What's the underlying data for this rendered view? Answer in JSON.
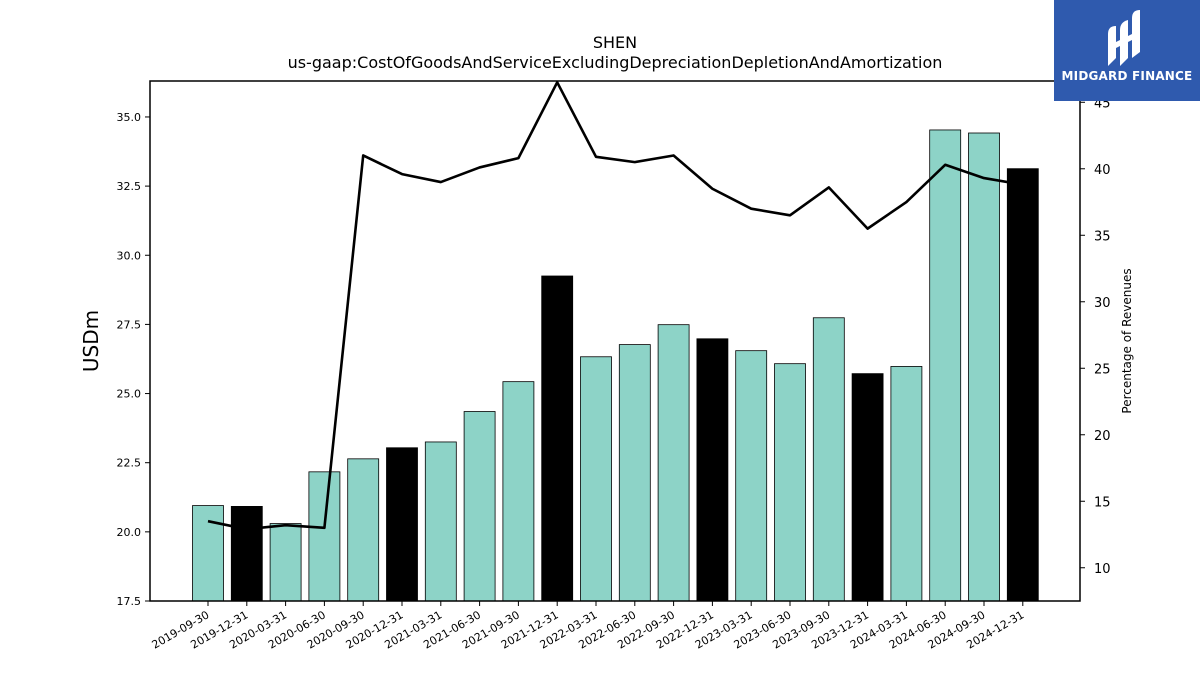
{
  "chart_data": {
    "type": "bar",
    "title": "SHEN",
    "subtitle": "us-gaap:CostOfGoodsAndServiceExcludingDepreciationDepletionAndAmortization",
    "ylabel": "USDm",
    "y2label": "Percentage of Revenues",
    "categories": [
      "2019-09-30",
      "2019-12-31",
      "2020-03-31",
      "2020-06-30",
      "2020-09-30",
      "2020-12-31",
      "2021-03-31",
      "2021-06-30",
      "2021-09-30",
      "2021-12-31",
      "2022-03-31",
      "2022-06-30",
      "2022-09-30",
      "2022-12-31",
      "2023-03-31",
      "2023-06-30",
      "2023-09-30",
      "2023-12-31",
      "2024-03-31",
      "2024-06-30",
      "2024-09-30",
      "2024-12-31"
    ],
    "series": [
      {
        "type": "bar",
        "axis": "left",
        "values": [
          20.95,
          20.92,
          20.3,
          22.17,
          22.64,
          23.04,
          23.25,
          24.35,
          25.43,
          29.25,
          26.33,
          26.77,
          27.49,
          26.98,
          26.55,
          26.08,
          27.74,
          25.72,
          25.98,
          34.53,
          34.42,
          33.13
        ],
        "colors": [
          "#8dd3c7",
          "#000000",
          "#8dd3c7",
          "#8dd3c7",
          "#8dd3c7",
          "#000000",
          "#8dd3c7",
          "#8dd3c7",
          "#8dd3c7",
          "#000000",
          "#8dd3c7",
          "#8dd3c7",
          "#8dd3c7",
          "#000000",
          "#8dd3c7",
          "#8dd3c7",
          "#8dd3c7",
          "#000000",
          "#8dd3c7",
          "#8dd3c7",
          "#8dd3c7",
          "#000000"
        ]
      },
      {
        "type": "line",
        "axis": "right",
        "color": "#000000",
        "values": [
          13.5,
          12.9,
          13.2,
          13.0,
          41.0,
          39.6,
          39.0,
          40.1,
          40.8,
          46.5,
          40.9,
          40.5,
          41.0,
          38.5,
          37.0,
          36.5,
          38.6,
          35.5,
          37.5,
          40.3,
          39.3,
          38.8
        ]
      }
    ],
    "ylim": [
      17.5,
      36.3
    ],
    "y2lim": [
      7.5,
      46.6
    ],
    "yticks": [
      "17.5",
      "20.0",
      "22.5",
      "25.0",
      "27.5",
      "30.0",
      "32.5",
      "35.0"
    ],
    "y2ticks": [
      "10",
      "15",
      "20",
      "25",
      "30",
      "35",
      "40",
      "45"
    ],
    "grid": false
  },
  "logo": {
    "text": "MIDGARD FINANCE",
    "background": "#2f5aae"
  }
}
